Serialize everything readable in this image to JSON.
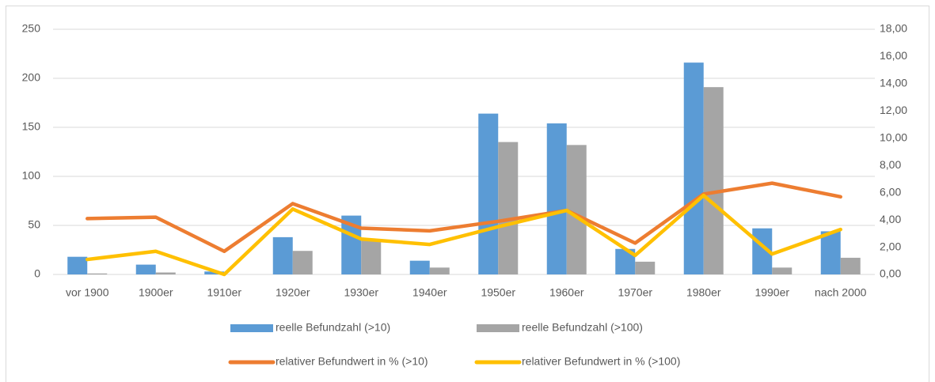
{
  "chart_data": {
    "type": "bar_line",
    "categories": [
      "vor 1900",
      "1900er",
      "1910er",
      "1920er",
      "1930er",
      "1940er",
      "1950er",
      "1960er",
      "1970er",
      "1980er",
      "1990er",
      "nach 2000"
    ],
    "series": [
      {
        "name": "reelle Befundzahl (>10)",
        "type": "bar",
        "color": "#5b9bd5",
        "values": [
          18,
          10,
          3,
          38,
          60,
          14,
          164,
          154,
          26,
          216,
          47,
          44
        ]
      },
      {
        "name": "reelle Befundzahl (>100)",
        "type": "bar",
        "color": "#a5a5a5",
        "values": [
          1,
          2,
          0,
          24,
          35,
          7,
          135,
          132,
          13,
          191,
          7,
          17
        ]
      },
      {
        "name": "relativer Befundwert in % (>10)",
        "type": "line",
        "axis": "y2",
        "color": "#ed7d31",
        "values": [
          4.1,
          4.2,
          1.7,
          5.2,
          3.4,
          3.2,
          3.9,
          4.7,
          2.3,
          5.9,
          6.7,
          5.7
        ]
      },
      {
        "name": "relativer Befundwert in % (>100)",
        "type": "line",
        "axis": "y2",
        "color": "#ffc000",
        "values": [
          1.1,
          1.7,
          0,
          4.8,
          2.6,
          2.2,
          3.5,
          4.7,
          1.4,
          5.8,
          1.5,
          3.3
        ]
      }
    ],
    "ylim": [
      0,
      250
    ],
    "yticks": [
      0,
      50,
      100,
      150,
      200,
      250
    ],
    "y2lim": [
      0,
      18
    ],
    "y2ticks": [
      {
        "value": 0,
        "label": "0,00"
      },
      {
        "value": 2,
        "label": "2,00"
      },
      {
        "value": 4,
        "label": "4,00"
      },
      {
        "value": 6,
        "label": "6,00"
      },
      {
        "value": 8,
        "label": "8,00"
      },
      {
        "value": 10,
        "label": "10,00"
      },
      {
        "value": 12,
        "label": "12,00"
      },
      {
        "value": 14,
        "label": "14,00"
      },
      {
        "value": 16,
        "label": "16,00"
      },
      {
        "value": 18,
        "label": "18,00"
      }
    ],
    "grid": true,
    "legend": "bottom"
  }
}
